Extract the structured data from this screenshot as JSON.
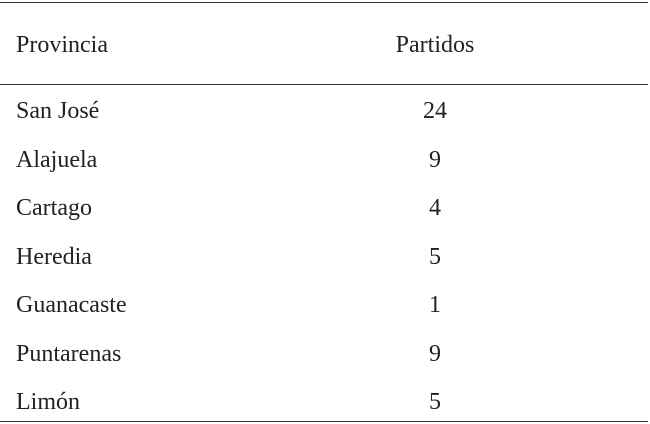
{
  "table": {
    "header": [
      "Provincia",
      "Partidos"
    ],
    "rows": [
      [
        "San José",
        "24"
      ],
      [
        "Alajuela",
        "9"
      ],
      [
        "Cartago",
        "4"
      ],
      [
        "Heredia",
        "5"
      ],
      [
        "Guanacaste",
        "1"
      ],
      [
        "Puntarenas",
        "9"
      ],
      [
        "Limón",
        "5"
      ]
    ]
  }
}
